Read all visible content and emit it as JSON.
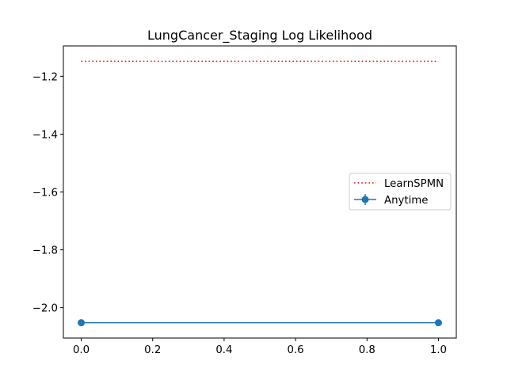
{
  "chart_data": {
    "type": "line",
    "title": "LungCancer_Staging Log Likelihood",
    "xlabel": "",
    "ylabel": "",
    "xlim": [
      -0.05,
      1.05
    ],
    "ylim": [
      -2.105,
      -1.095
    ],
    "xticks": [
      0.0,
      0.2,
      0.4,
      0.6,
      0.8,
      1.0
    ],
    "xtick_labels": [
      "0.0",
      "0.2",
      "0.4",
      "0.6",
      "0.8",
      "1.0"
    ],
    "yticks": [
      -2.0,
      -1.8,
      -1.6,
      -1.4,
      -1.2
    ],
    "ytick_labels": [
      "−2.0",
      "−1.8",
      "−1.6",
      "−1.4",
      "−1.2"
    ],
    "grid": false,
    "legend_position": "center-right",
    "series": [
      {
        "name": "LearnSPMN",
        "x": [
          0,
          1
        ],
        "y": [
          -1.148,
          -1.148
        ],
        "color": "#ff0000",
        "style": "dotted",
        "marker": "none"
      },
      {
        "name": "Anytime",
        "x": [
          0,
          1
        ],
        "y": [
          -2.052,
          -2.052
        ],
        "color": "#1f77b4",
        "style": "solid",
        "marker": "circle",
        "errorbar": true
      }
    ]
  }
}
